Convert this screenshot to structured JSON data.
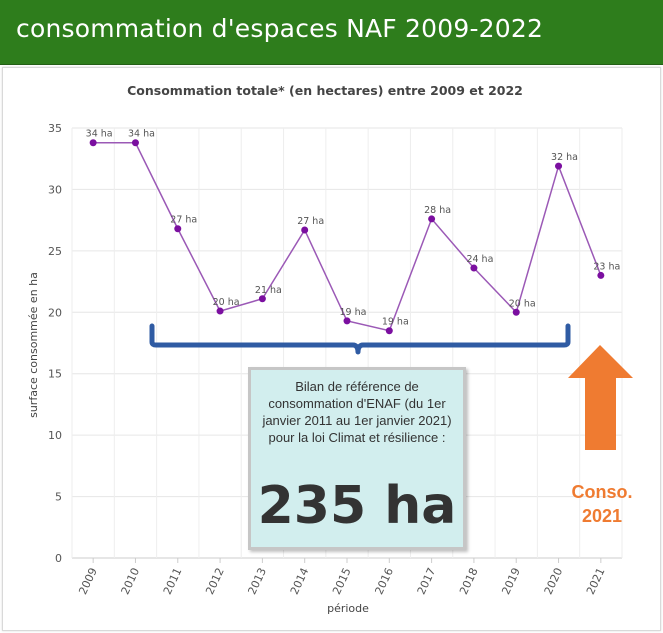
{
  "header": {
    "title": "consommation d'espaces NAF 2009-2022"
  },
  "callout": {
    "text": "Bilan de référence de consommation d'ENAF (du 1er janvier 2011 au 1er janvier 2021) pour la loi Climat et résilience :",
    "total": "235 ha"
  },
  "conso": {
    "label_line1": "Conso.",
    "label_line2": "2021"
  },
  "colors": {
    "header_bg": "#2e7d1c",
    "series": "#9b59b6",
    "point": "#7b0fa0",
    "brace": "#2f5ba3",
    "arrow": "#ef7b31",
    "callout_bg": "#d2eeee"
  },
  "chart_data": {
    "type": "line",
    "title": "Consommation totale* (en hectares) entre 2009 et 2022",
    "xlabel": "période",
    "ylabel": "surface consommée en ha",
    "categories": [
      "2009",
      "2010",
      "2011",
      "2012",
      "2013",
      "2014",
      "2015",
      "2016",
      "2017",
      "2018",
      "2019",
      "2020",
      "2021"
    ],
    "yticks": [
      "0",
      "5",
      "10",
      "15",
      "20",
      "25",
      "30",
      "35"
    ],
    "ylim": [
      0,
      35
    ],
    "grid": true,
    "series": [
      {
        "values": [
          33.8,
          33.8,
          26.8,
          20.1,
          21.1,
          26.7,
          19.3,
          18.5,
          27.6,
          23.6,
          20.0,
          31.9,
          23.0
        ],
        "labels": [
          "34 ha",
          "34 ha",
          "27 ha",
          "20 ha",
          "21 ha",
          "27 ha",
          "19 ha",
          "19 ha",
          "28 ha",
          "24 ha",
          "20 ha",
          "32 ha",
          "23 ha"
        ]
      }
    ]
  }
}
